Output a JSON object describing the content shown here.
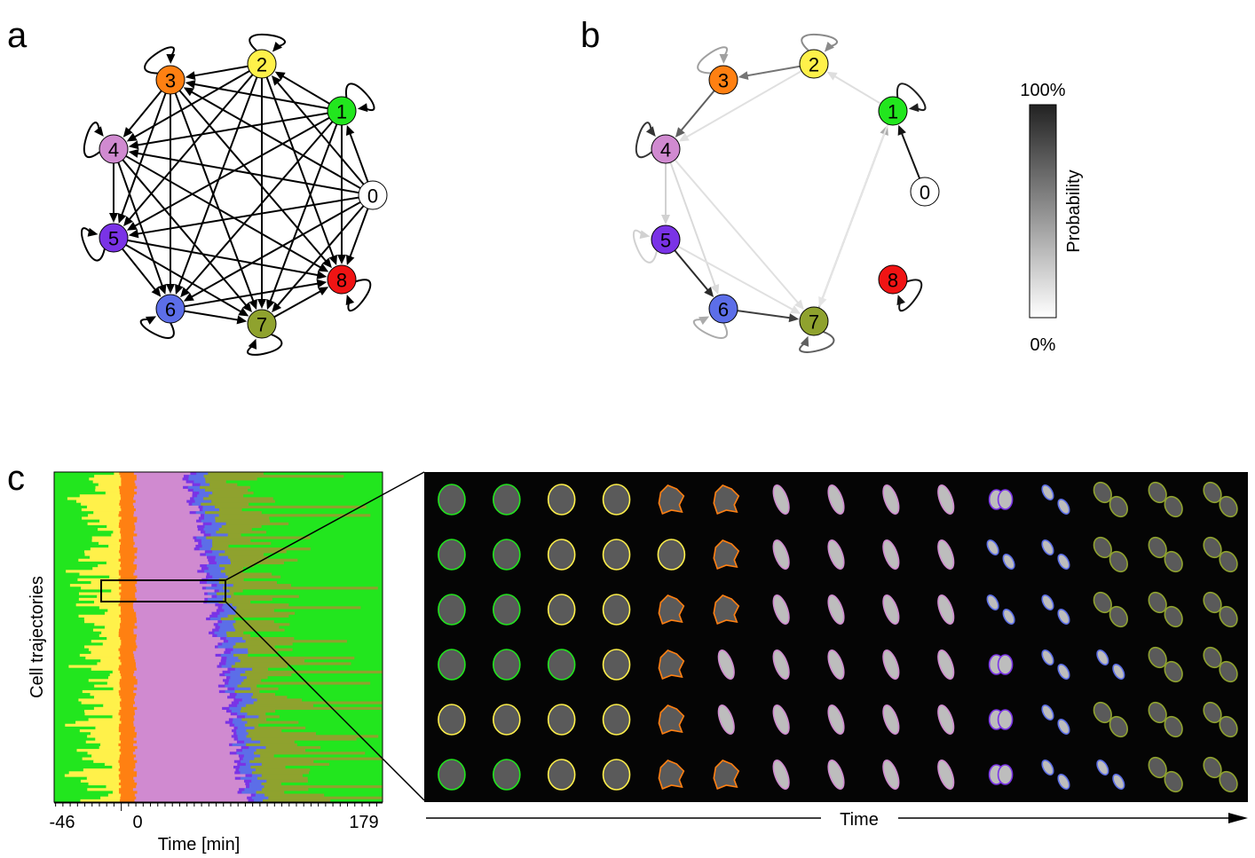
{
  "panels": {
    "a": {
      "letter": "a"
    },
    "b": {
      "letter": "b"
    },
    "c": {
      "letter": "c"
    }
  },
  "states": [
    {
      "id": "0",
      "color": "#ffffff"
    },
    {
      "id": "1",
      "color": "#22e61e"
    },
    {
      "id": "2",
      "color": "#fff14a"
    },
    {
      "id": "3",
      "color": "#ff8012"
    },
    {
      "id": "4",
      "color": "#d08ad0"
    },
    {
      "id": "5",
      "color": "#7a33e6"
    },
    {
      "id": "6",
      "color": "#5c6ee8"
    },
    {
      "id": "7",
      "color": "#8fa22e"
    },
    {
      "id": "8",
      "color": "#f01414"
    }
  ],
  "graph_b_transitions": [
    {
      "from": "0",
      "to": "1",
      "p": 1.0
    },
    {
      "from": "1",
      "to": "1",
      "p": 0.95
    },
    {
      "from": "2",
      "to": "2",
      "p": 0.45
    },
    {
      "from": "2",
      "to": "3",
      "p": 0.55
    },
    {
      "from": "1",
      "to": "2",
      "p": 0.06
    },
    {
      "from": "3",
      "to": "3",
      "p": 0.35
    },
    {
      "from": "3",
      "to": "4",
      "p": 0.65
    },
    {
      "from": "2",
      "to": "4",
      "p": 0.05
    },
    {
      "from": "4",
      "to": "4",
      "p": 0.85
    },
    {
      "from": "4",
      "to": "5",
      "p": 0.12
    },
    {
      "from": "4",
      "to": "6",
      "p": 0.08
    },
    {
      "from": "4",
      "to": "7",
      "p": 0.05
    },
    {
      "from": "5",
      "to": "5",
      "p": 0.12
    },
    {
      "from": "5",
      "to": "6",
      "p": 0.9
    },
    {
      "from": "5",
      "to": "7",
      "p": 0.05
    },
    {
      "from": "6",
      "to": "6",
      "p": 0.3
    },
    {
      "from": "6",
      "to": "7",
      "p": 0.8
    },
    {
      "from": "7",
      "to": "7",
      "p": 0.65
    },
    {
      "from": "7",
      "to": "1",
      "p": 0.3
    },
    {
      "from": "1",
      "to": "7",
      "p": 0.03
    },
    {
      "from": "8",
      "to": "8",
      "p": 1.0
    }
  ],
  "colorbar": {
    "top_label": "100%",
    "bottom_label": "0%",
    "title": "Probability"
  },
  "panel_c": {
    "ylabel": "Cell trajectories",
    "xlabel": "Time [min]",
    "xticks": [
      "-46",
      "0",
      "179"
    ],
    "right_axis_label": "Time",
    "cell_image_states": [
      [
        "1",
        "1",
        "2",
        "2",
        "3",
        "3",
        "4",
        "4",
        "4",
        "4",
        "5",
        "6",
        "7",
        "7",
        "7"
      ],
      [
        "1",
        "1",
        "2",
        "2",
        "2",
        "3",
        "4",
        "4",
        "4",
        "4",
        "6",
        "6",
        "7",
        "7",
        "7"
      ],
      [
        "1",
        "1",
        "2",
        "2",
        "3",
        "3",
        "4",
        "4",
        "4",
        "4",
        "6",
        "6",
        "7",
        "7",
        "7"
      ],
      [
        "1",
        "1",
        "1",
        "2",
        "3",
        "4",
        "4",
        "4",
        "4",
        "4",
        "5",
        "6",
        "6",
        "7",
        "7"
      ],
      [
        "2",
        "2",
        "2",
        "2",
        "3",
        "4",
        "4",
        "4",
        "4",
        "4",
        "5",
        "6",
        "7",
        "7",
        "7"
      ],
      [
        "1",
        "1",
        "2",
        "2",
        "3",
        "3",
        "4",
        "4",
        "4",
        "4",
        "5",
        "6",
        "6",
        "7",
        "7"
      ]
    ]
  }
}
